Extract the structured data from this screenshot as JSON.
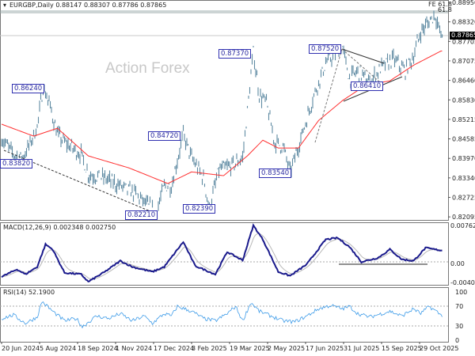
{
  "header": {
    "symbol": "EURGBP,Daily",
    "open": "0.88147",
    "high": "0.88307",
    "low": "0.87786",
    "close": "0.87865"
  },
  "watermark": "Action Forex",
  "fe_label": "FE 61.8",
  "fe_label2": "61.8",
  "current_price": "0.87865",
  "annotations": [
    "0.83820",
    "0.86240",
    "0.84720",
    "0.87370",
    "0.82210",
    "0.82390",
    "0.83540",
    "0.87520",
    "0.86410"
  ],
  "colors": {
    "bars": "#5f8aa3",
    "ma": "#ff3030",
    "macd": "#1a1a8c",
    "signal": "#b0b0b0",
    "rsi": "#3d9be8",
    "label": "#3030b0"
  },
  "chart_data": [
    {
      "type": "line",
      "title": "EURGBP,Daily",
      "ylim": [
        0.82095,
        0.8895
      ],
      "y_ticks": [
        "0.88950",
        "0.88320",
        "0.87705",
        "0.87075",
        "0.86460",
        "0.85830",
        "0.85215",
        "0.84585",
        "0.83970",
        "0.83340",
        "0.82725",
        "0.82095"
      ],
      "x_ticks": [
        "20 Jun 2024",
        "5 Aug 2024",
        "18 Sep 2024",
        "1 Nov 2024",
        "17 Dec 2024",
        "3 Feb 2025",
        "19 Mar 2025",
        "2 May 2025",
        "17 Jun 2025",
        "31 Jul 2025",
        "15 Sep 2025",
        "29 Oct 2025"
      ],
      "price_waypoints": [
        [
          0,
          0.8462
        ],
        [
          10,
          0.8411
        ],
        [
          17,
          0.8399
        ],
        [
          23,
          0.8436
        ],
        [
          30,
          0.8499
        ],
        [
          35,
          0.8624
        ],
        [
          40,
          0.8575
        ],
        [
          47,
          0.8474
        ],
        [
          53,
          0.8449
        ],
        [
          67,
          0.8411
        ],
        [
          73,
          0.8348
        ],
        [
          87,
          0.8335
        ],
        [
          100,
          0.831
        ],
        [
          113,
          0.8285
        ],
        [
          123,
          0.8247
        ],
        [
          130,
          0.8221
        ],
        [
          137,
          0.831
        ],
        [
          143,
          0.831
        ],
        [
          150,
          0.8424
        ],
        [
          153,
          0.8472
        ],
        [
          160,
          0.8399
        ],
        [
          170,
          0.8335
        ],
        [
          175,
          0.8239
        ],
        [
          183,
          0.8361
        ],
        [
          193,
          0.8373
        ],
        [
          203,
          0.8399
        ],
        [
          212,
          0.8737
        ],
        [
          217,
          0.86
        ],
        [
          223,
          0.8575
        ],
        [
          230,
          0.8449
        ],
        [
          237,
          0.8436
        ],
        [
          243,
          0.8354
        ],
        [
          253,
          0.8474
        ],
        [
          263,
          0.86
        ],
        [
          273,
          0.8701
        ],
        [
          287,
          0.8752
        ],
        [
          293,
          0.8651
        ],
        [
          300,
          0.8676
        ],
        [
          310,
          0.8641
        ],
        [
          320,
          0.8688
        ],
        [
          330,
          0.8714
        ],
        [
          340,
          0.8676
        ],
        [
          347,
          0.8726
        ],
        [
          353,
          0.8802
        ],
        [
          365,
          0.8857
        ],
        [
          370,
          0.8787
        ]
      ],
      "ma_waypoints": [
        [
          0,
          0.8507
        ],
        [
          27,
          0.8469
        ],
        [
          47,
          0.8494
        ],
        [
          73,
          0.8406
        ],
        [
          107,
          0.8368
        ],
        [
          140,
          0.8318
        ],
        [
          160,
          0.8355
        ],
        [
          187,
          0.8343
        ],
        [
          207,
          0.8406
        ],
        [
          220,
          0.8456
        ],
        [
          233,
          0.8431
        ],
        [
          250,
          0.8431
        ],
        [
          267,
          0.8519
        ],
        [
          287,
          0.8582
        ],
        [
          307,
          0.8632
        ],
        [
          327,
          0.8645
        ],
        [
          347,
          0.8695
        ],
        [
          370,
          0.874
        ]
      ]
    },
    {
      "type": "line",
      "title": "MACD(12,26,9)",
      "values_label": "0.002348 0.002750",
      "ylim": [
        -0.004073,
        0.007623
      ],
      "y_ticks": [
        "0.007623",
        "0.00",
        "-0.004073"
      ],
      "macd_waypoints": [
        [
          0,
          -0.003
        ],
        [
          13,
          -0.0015
        ],
        [
          20,
          -0.0025
        ],
        [
          30,
          -0.001
        ],
        [
          37,
          0.0035
        ],
        [
          43,
          0.0025
        ],
        [
          53,
          -0.0022
        ],
        [
          67,
          -0.0025
        ],
        [
          73,
          -0.004
        ],
        [
          87,
          -0.002
        ],
        [
          100,
          0.0002
        ],
        [
          110,
          -0.001
        ],
        [
          127,
          -0.002
        ],
        [
          137,
          -0.001
        ],
        [
          153,
          0.004
        ],
        [
          163,
          -0.0008
        ],
        [
          180,
          -0.0025
        ],
        [
          190,
          0.002
        ],
        [
          203,
          0.0003
        ],
        [
          212,
          0.0073
        ],
        [
          220,
          0.0045
        ],
        [
          233,
          -0.002
        ],
        [
          243,
          -0.0028
        ],
        [
          257,
          -0.0005
        ],
        [
          273,
          0.0045
        ],
        [
          283,
          0.0048
        ],
        [
          293,
          0.003
        ],
        [
          303,
          0.0
        ],
        [
          317,
          0.0008
        ],
        [
          327,
          0.0025
        ],
        [
          337,
          0.0005
        ],
        [
          347,
          0.0002
        ],
        [
          357,
          0.0028
        ],
        [
          370,
          0.0023
        ]
      ]
    },
    {
      "type": "line",
      "title": "RSI(14)",
      "values_label": "52.1900",
      "ylim": [
        0,
        100
      ],
      "y_ticks": [
        "100",
        "70",
        "30",
        "0"
      ],
      "rsi_waypoints": [
        [
          0,
          45
        ],
        [
          10,
          52
        ],
        [
          20,
          35
        ],
        [
          30,
          48
        ],
        [
          34,
          80
        ],
        [
          43,
          60
        ],
        [
          53,
          40
        ],
        [
          63,
          45
        ],
        [
          68,
          28
        ],
        [
          80,
          50
        ],
        [
          90,
          45
        ],
        [
          100,
          55
        ],
        [
          110,
          40
        ],
        [
          120,
          50
        ],
        [
          127,
          35
        ],
        [
          137,
          55
        ],
        [
          143,
          50
        ],
        [
          148,
          70
        ],
        [
          160,
          60
        ],
        [
          170,
          45
        ],
        [
          180,
          40
        ],
        [
          190,
          55
        ],
        [
          197,
          70
        ],
        [
          203,
          40
        ],
        [
          210,
          78
        ],
        [
          217,
          60
        ],
        [
          227,
          50
        ],
        [
          237,
          40
        ],
        [
          247,
          38
        ],
        [
          257,
          50
        ],
        [
          267,
          65
        ],
        [
          277,
          72
        ],
        [
          287,
          65
        ],
        [
          293,
          70
        ],
        [
          300,
          55
        ],
        [
          310,
          48
        ],
        [
          320,
          55
        ],
        [
          327,
          60
        ],
        [
          337,
          50
        ],
        [
          347,
          65
        ],
        [
          353,
          55
        ],
        [
          360,
          70
        ],
        [
          366,
          60
        ],
        [
          370,
          52
        ]
      ]
    }
  ]
}
